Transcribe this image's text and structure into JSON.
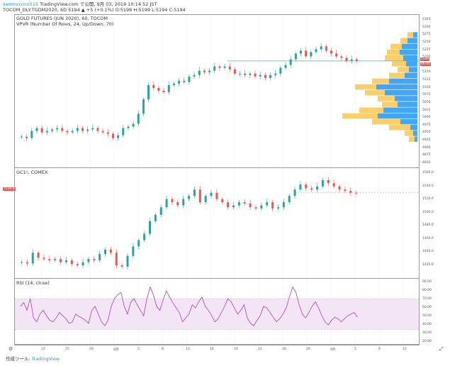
{
  "header": {
    "user": "sammrcoco515",
    "published": " TradingView.com で公開, 9月 03, 2019 10:14:52 JST",
    "symbol_line": "TOCOM_DLY:TGDM2020, 6D 5194 ▲ +5 (+0.1%) O:5198 H:5199 L:5194 C:5194"
  },
  "panes": {
    "main_title": "GOLD FUTURES (JUN 2020), 60, TOCOM",
    "vpvr_title": "VPVR (Number Of Rows, 24, Up/Down, 70)",
    "second_title": "GC1!, COMEX",
    "rsi_title": "RSI (14, close)"
  },
  "axes": {
    "main_ticks": [
      "5325",
      "5300",
      "5275",
      "5250",
      "5225",
      "5200",
      "5175",
      "5150",
      "5125",
      "5100",
      "5075",
      "5050",
      "5025",
      "5000",
      "4975",
      "4950",
      "4925",
      "4900",
      "4875",
      "4850"
    ],
    "main_price_tag": "5194",
    "main_price_tag2": "06:00",
    "second_ticks": [
      "1560.0",
      "1540.0",
      "1520.0",
      "1500.0",
      "1480.0",
      "1460.0",
      "1440.0",
      "1420.0"
    ],
    "second_price_tag": "1534.8",
    "rsi_ticks": [
      "90.00",
      "80.00",
      "70.00",
      "60.00",
      "50.00",
      "40.00",
      "30.00",
      "20.00"
    ],
    "x_ticks": [
      "22",
      "25",
      "29",
      "8月",
      "5",
      "8",
      "13",
      "16",
      "19",
      "22",
      "26",
      "29",
      "9月",
      "5",
      "9",
      "12"
    ]
  },
  "footer": {
    "made_with": "作成ツール: ",
    "brand": "TradingView"
  },
  "icons": {
    "settings": "gear-icon",
    "expand": "expand-icon"
  },
  "colors": {
    "up": "#26a69a",
    "down": "#ef5350",
    "vp_up": "#2196f3",
    "vp_down": "#f9c74f",
    "rsi_line": "#9c27b0",
    "rsi_band": "#f3e5f5"
  },
  "chart_data": [
    {
      "type": "candlestick",
      "title": "GOLD FUTURES (JUN 2020), 60, TOCOM",
      "ylim": [
        4850,
        5330
      ],
      "close_series": [
        4930,
        4925,
        4950,
        4960,
        4945,
        4950,
        4955,
        4960,
        4950,
        4945,
        4950,
        4960,
        4950,
        4955,
        4960,
        4950,
        4945,
        4940,
        4925,
        4935,
        4960,
        4965,
        4975,
        5010,
        5060,
        5110,
        5100,
        5090,
        5085,
        5110,
        5115,
        5125,
        5120,
        5140,
        5145,
        5160,
        5155,
        5160,
        5175,
        5170,
        5175,
        5165,
        5150,
        5150,
        5145,
        5150,
        5140,
        5145,
        5135,
        5145,
        5150,
        5170,
        5180,
        5200,
        5220,
        5230,
        5210,
        5225,
        5235,
        5245,
        5230,
        5220,
        5210,
        5205,
        5195,
        5200,
        5194
      ],
      "last": 5194
    },
    {
      "type": "candlestick",
      "title": "GC1!, COMEX",
      "ylim": [
        1410,
        1565
      ],
      "close_series": [
        1425,
        1423,
        1440,
        1432,
        1430,
        1428,
        1430,
        1425,
        1428,
        1422,
        1420,
        1425,
        1430,
        1428,
        1438,
        1445,
        1440,
        1420,
        1418,
        1435,
        1450,
        1460,
        1470,
        1490,
        1500,
        1512,
        1525,
        1520,
        1515,
        1525,
        1530,
        1540,
        1520,
        1530,
        1535,
        1525,
        1520,
        1512,
        1515,
        1520,
        1518,
        1512,
        1510,
        1515,
        1520,
        1510,
        1512,
        1520,
        1530,
        1540,
        1548,
        1542,
        1540,
        1545,
        1555,
        1550,
        1545,
        1540,
        1538,
        1535,
        1534.8
      ],
      "last": 1534.8
    },
    {
      "type": "line",
      "title": "RSI (14, close)",
      "ylim": [
        15,
        92
      ],
      "band": [
        30,
        70
      ],
      "values": [
        60,
        65,
        55,
        70,
        45,
        40,
        50,
        55,
        48,
        42,
        40,
        45,
        52,
        48,
        44,
        38,
        40,
        50,
        47,
        45,
        42,
        38,
        55,
        60,
        50,
        40,
        35,
        42,
        60,
        70,
        75,
        78,
        60,
        50,
        65,
        70,
        62,
        55,
        48,
        70,
        85,
        75,
        60,
        55,
        68,
        80,
        72,
        65,
        58,
        52,
        40,
        45,
        50,
        62,
        58,
        66,
        72,
        60,
        55,
        48,
        40,
        44,
        52,
        60,
        70,
        66,
        58,
        50,
        55,
        62,
        45,
        38,
        35,
        42,
        48,
        60,
        58,
        52,
        46,
        40,
        44,
        50,
        58,
        72,
        85,
        78,
        62,
        50,
        45,
        52,
        60,
        66,
        58,
        48,
        40,
        36,
        42,
        46,
        44,
        40,
        44,
        48,
        50,
        52,
        46
      ]
    },
    {
      "type": "bar",
      "title": "VPVR (Number Of Rows, 24, Up/Down, 70)",
      "rows_up": [
        0,
        0,
        6,
        14,
        22,
        25,
        20,
        16,
        12,
        18,
        40,
        58,
        46,
        32,
        28,
        48,
        56,
        24,
        10,
        6,
        4,
        0,
        0,
        0
      ],
      "rows_down": [
        0,
        0,
        8,
        10,
        16,
        18,
        26,
        20,
        16,
        22,
        24,
        30,
        28,
        24,
        22,
        34,
        50,
        40,
        30,
        12,
        8,
        0,
        0,
        0
      ]
    }
  ]
}
